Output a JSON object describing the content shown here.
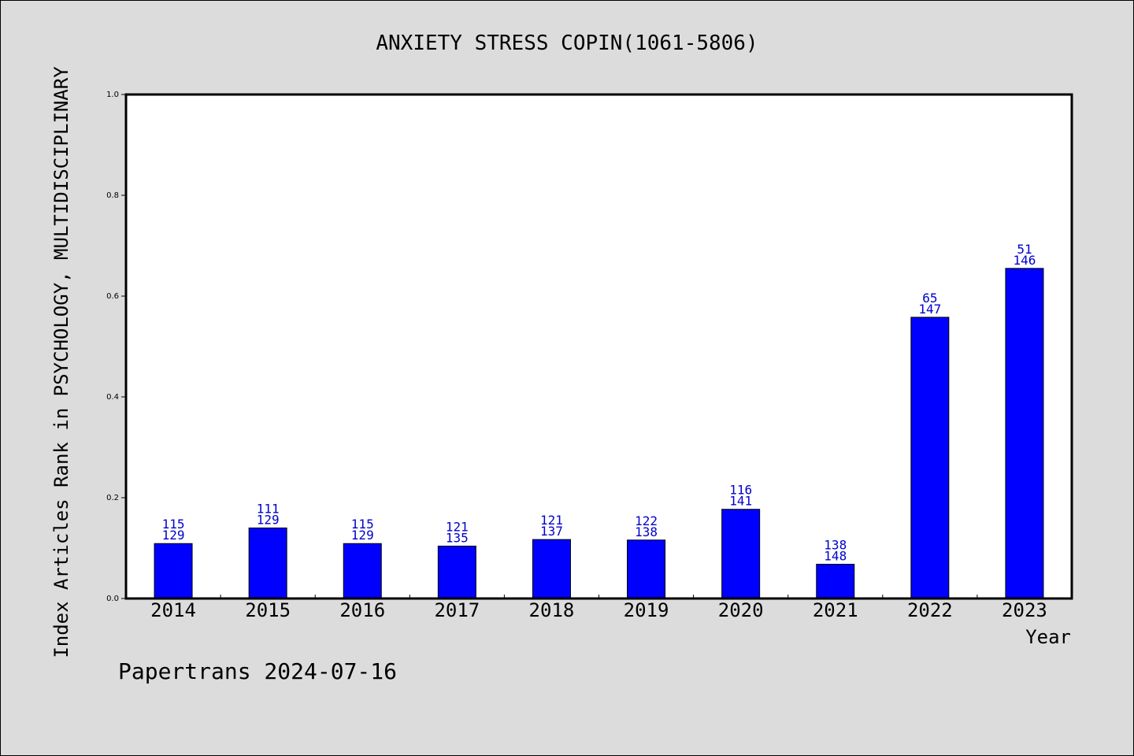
{
  "chart_data": {
    "type": "bar",
    "title": "ANXIETY STRESS COPIN(1061-5806)",
    "xlabel": "Year",
    "ylabel": "Index Articles Rank in PSYCHOLOGY, MULTIDISCIPLINARY",
    "ylim": [
      0,
      1.0
    ],
    "yticks": [
      "0.0",
      "0.2",
      "0.4",
      "0.6",
      "0.8",
      "1.0"
    ],
    "categories": [
      "2014",
      "2015",
      "2016",
      "2017",
      "2018",
      "2019",
      "2020",
      "2021",
      "2022",
      "2023"
    ],
    "values": [
      0.109,
      0.14,
      0.109,
      0.104,
      0.117,
      0.116,
      0.177,
      0.068,
      0.558,
      0.655
    ],
    "rank": [
      "115",
      "111",
      "115",
      "121",
      "121",
      "122",
      "116",
      "138",
      "65",
      "51"
    ],
    "total": [
      "129",
      "129",
      "129",
      "135",
      "137",
      "138",
      "141",
      "148",
      "147",
      "146"
    ],
    "bar_color": "#0000ff",
    "label_color": "#0000cc",
    "grid": false
  },
  "footer": {
    "credit": "Papertrans 2024-07-16"
  }
}
